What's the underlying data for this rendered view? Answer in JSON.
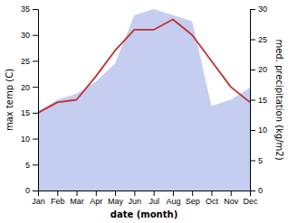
{
  "chart_data": {
    "type": "line",
    "categories": [
      "Jan",
      "Feb",
      "Mar",
      "Apr",
      "May",
      "Jun",
      "Jul",
      "Aug",
      "Sep",
      "Oct",
      "Nov",
      "Dec"
    ],
    "series": [
      {
        "type": "area",
        "axis": "y2",
        "color": "#c5cef0",
        "values": [
          13,
          15,
          16,
          18,
          21,
          29,
          30,
          29,
          28,
          14,
          15,
          17
        ]
      },
      {
        "type": "line",
        "color": "#c03030",
        "values": [
          15,
          17,
          17.5,
          22,
          27,
          31,
          31,
          33,
          30,
          25,
          20,
          17
        ]
      }
    ],
    "xlabel": "date (month)",
    "ylabel": "max temp (C)",
    "y2label": "med. precipitation (kg/m2)",
    "ylim": [
      0,
      35
    ],
    "yticks": [
      0,
      5,
      10,
      15,
      20,
      25,
      30,
      35
    ],
    "y2lim": [
      0,
      30
    ],
    "y2ticks": [
      0,
      5,
      10,
      15,
      20,
      25,
      30
    ],
    "grid": false
  }
}
